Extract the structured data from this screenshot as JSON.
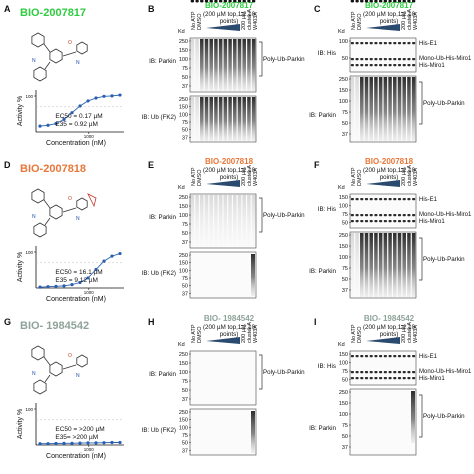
{
  "rows": [
    {
      "id": "row-1",
      "panel_letters": [
        "A",
        "B",
        "C"
      ],
      "compound": "BIO-2007817",
      "compound_color": "#2ecc40",
      "ec50": "EC50 = 0.17 µM",
      "e35": "E35 = 0.92 µM",
      "plot": {
        "ylabel": "Activity %",
        "xlabel": "Concentration (nM)",
        "ytick": "100",
        "xtick": "1000",
        "curve": [
          0.14,
          0.16,
          0.2,
          0.3,
          0.46,
          0.62,
          0.74,
          0.81,
          0.85,
          0.86,
          0.88
        ]
      },
      "mid": {
        "header": "(200 µM top,1:2,10 points)",
        "lanes_top": [
          "No ATP",
          "DMSO"
        ],
        "lanes_right": [
          "200 µM",
          "cluster A",
          "W403A"
        ],
        "kd_label": "Kd",
        "blot1": {
          "label": "IB: Parkin",
          "ticks": [
            "250",
            "150",
            "100",
            "75",
            "50",
            "37"
          ],
          "bracket": "Poly-Ub-Parkin"
        },
        "blot2": {
          "label": "IB: Ub (FK2)",
          "ticks": [
            "250",
            "150",
            "100",
            "75",
            "50",
            "37"
          ]
        }
      },
      "right": {
        "header": "(200 µM top,1:2,10 points)",
        "lanes_top": [
          "No ATP",
          "DMSO"
        ],
        "lanes_right": [
          "200 µM",
          "cluster A",
          "W403A"
        ],
        "kd_label": "Kd",
        "blot1": {
          "label": "IB: His",
          "ticks": [
            "100",
            "50"
          ],
          "bands": [
            "His-E1",
            "Mono-Ub-His-Miro1",
            "His-Miro1"
          ]
        },
        "blot2": {
          "label": "IB: Parkin",
          "ticks": [
            "250",
            "150",
            "100",
            "75",
            "50",
            "37"
          ],
          "bracket": "Poly-Ub-Parkin"
        }
      }
    },
    {
      "id": "row-2",
      "panel_letters": [
        "D",
        "E",
        "F"
      ],
      "compound": "BIO-2007818",
      "compound_color": "#e8773a",
      "ec50": "EC50 = 16.1 µM",
      "e35": "E35 = 9.12 µM",
      "plot": {
        "ylabel": "Activity %",
        "xlabel": "Concentration (nM)",
        "ytick": "100",
        "xtick": "1000",
        "curve": [
          0.02,
          0.03,
          0.04,
          0.05,
          0.08,
          0.13,
          0.24,
          0.44,
          0.64,
          0.76,
          0.82
        ]
      },
      "mid": {
        "header": "(200 µM top,1:2,10 points)",
        "lanes_top": [
          "No ATP",
          "DMSO"
        ],
        "lanes_right": [
          "200 µM",
          "cluster A",
          "W403A"
        ],
        "kd_label": "Kd",
        "blot1": {
          "label": "IB: Parkin",
          "ticks": [
            "250",
            "150",
            "100",
            "75",
            "50",
            "37"
          ],
          "bracket": "Poly-Ub-Parkin"
        },
        "blot2": {
          "label": "IB: Ub (FK2)",
          "ticks": [
            "250",
            "150",
            "100",
            "75",
            "50",
            "37"
          ]
        }
      },
      "right": {
        "header": "(200 µM top,1:2,10 points)",
        "lanes_top": [
          "No ATP",
          "DMSO"
        ],
        "lanes_right": [
          "200 µM",
          "cluster A",
          "W403A"
        ],
        "kd_label": "Kd",
        "blot1": {
          "label": "IB: His",
          "ticks": [
            "150",
            "100",
            "75",
            "50"
          ],
          "bands": [
            "His-E1",
            "Mono-Ub-His-Miro1",
            "His-Miro1"
          ]
        },
        "blot2": {
          "label": "IB: Parkin",
          "ticks": [
            "250",
            "150",
            "100",
            "75",
            "50",
            "37"
          ],
          "bracket": "Poly-Ub-Parkin"
        }
      }
    },
    {
      "id": "row-3",
      "panel_letters": [
        "G",
        "H",
        "I"
      ],
      "compound": "BIO- 1984542",
      "compound_color": "#8fa39a",
      "ec50": "EC50 = >200 µM",
      "e35": "E35= >200 µM",
      "plot": {
        "ylabel": "Activity %",
        "xlabel": "Concentration (nM)",
        "ytick": "100",
        "xtick": "1000",
        "curve": [
          0.03,
          0.03,
          0.035,
          0.04,
          0.04,
          0.045,
          0.05,
          0.05,
          0.055,
          0.06,
          0.06
        ]
      },
      "mid": {
        "header": "(200 µM top,1:2,10 points)",
        "lanes_top": [
          "No ATP",
          "DMSO"
        ],
        "lanes_right": [
          "200 µM",
          "cluster A",
          "W403A"
        ],
        "kd_label": "Kd",
        "blot1": {
          "label": "IB: Parkin",
          "ticks": [
            "250",
            "150",
            "100",
            "75",
            "50",
            "37"
          ],
          "bracket": "Poly-Ub-Parkin"
        },
        "blot2": {
          "label": "IB: Ub (FK2)",
          "ticks": [
            "250",
            "150",
            "100",
            "75",
            "50",
            "37"
          ]
        }
      },
      "right": {
        "header": "(200 µM top,1:2,10 points)",
        "lanes_top": [
          "No ATP",
          "DMSO"
        ],
        "lanes_right": [
          "200 µM",
          "cluster A",
          "W403A"
        ],
        "kd_label": "Kd",
        "blot1": {
          "label": "IB: His",
          "ticks": [
            "150",
            "100",
            "75",
            "50"
          ],
          "bands": [
            "His-E1",
            "Mono-Ub-His-Miro1",
            "His-Miro1"
          ]
        },
        "blot2": {
          "label": "IB: Parkin",
          "ticks": [
            "250",
            "150",
            "100",
            "75",
            "50",
            "37"
          ],
          "bracket": "Poly-Ub-Parkin"
        }
      }
    }
  ]
}
